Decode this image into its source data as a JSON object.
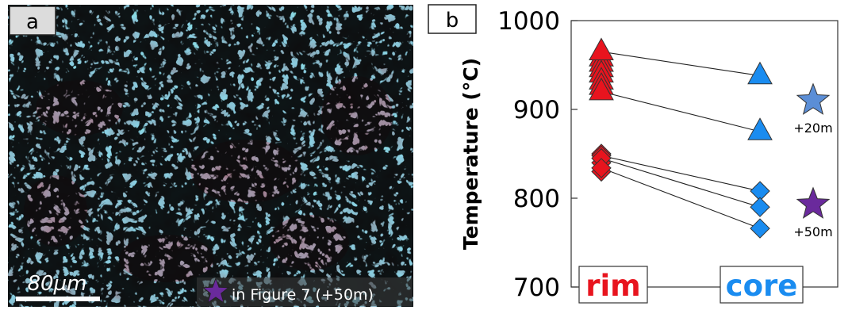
{
  "panel_a": {
    "label": "a",
    "scale_bar_label": "80µm",
    "star_caption": "in Figure 7 (+50m)",
    "star_color": "#6a2a9c"
  },
  "chart_data": {
    "type": "scatter",
    "panel_label": "b",
    "ylabel": "Temperature (°C)",
    "ylim": [
      700,
      1000
    ],
    "yticks": [
      700,
      800,
      900,
      1000
    ],
    "categories": [
      "rim",
      "core"
    ],
    "category_colors": {
      "rim": "#e8141e",
      "core": "#1a8cf0"
    },
    "grid": false,
    "series": [
      {
        "marker": "triangle",
        "pairs": [
          [
            965,
            938
          ],
          [
            920,
            875
          ]
        ],
        "extra_rim_points": [
          958,
          952,
          946,
          940,
          932,
          926
        ]
      },
      {
        "marker": "diamond",
        "pairs": [
          [
            848,
            808
          ],
          [
            845,
            790
          ],
          [
            834,
            766
          ]
        ],
        "extra_rim_points": [
          850,
          840,
          830
        ]
      }
    ],
    "reference_stars": [
      {
        "value": 910,
        "label": "+20m",
        "color": "#5b8ed6"
      },
      {
        "value": 793,
        "label": "+50m",
        "color": "#6a2a9c"
      }
    ]
  }
}
